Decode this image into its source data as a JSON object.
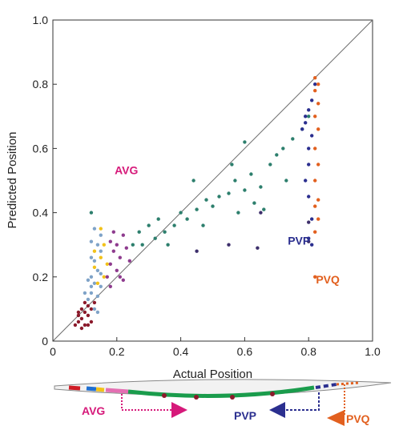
{
  "chart_data": {
    "type": "scatter",
    "xlabel": "Actual Position",
    "ylabel": "Predicted Position",
    "xlim": [
      0,
      1
    ],
    "ylim": [
      0,
      1
    ],
    "x_ticks": [
      "0",
      "0.2",
      "0.4",
      "0.6",
      "0.8",
      "1.0"
    ],
    "y_ticks": [
      "0",
      "0.2",
      "0.4",
      "0.6",
      "0.8",
      "1.0"
    ],
    "grid": false,
    "reference_line": "y = x",
    "annotations": [
      {
        "text": "AVG",
        "x": 0.23,
        "y": 0.52,
        "color": "#d6197a"
      },
      {
        "text": "PVP",
        "x": 0.77,
        "y": 0.3,
        "color": "#2b2f8f"
      },
      {
        "text": "PVQ",
        "x": 0.86,
        "y": 0.18,
        "color": "#e2601f"
      }
    ],
    "series": [
      {
        "color": "#8b1a2b",
        "points": [
          [
            0.07,
            0.05
          ],
          [
            0.08,
            0.06
          ],
          [
            0.08,
            0.08
          ],
          [
            0.09,
            0.04
          ],
          [
            0.09,
            0.07
          ],
          [
            0.1,
            0.09
          ],
          [
            0.1,
            0.05
          ],
          [
            0.11,
            0.08
          ],
          [
            0.11,
            0.11
          ],
          [
            0.12,
            0.06
          ],
          [
            0.12,
            0.1
          ],
          [
            0.13,
            0.12
          ],
          [
            0.09,
            0.1
          ],
          [
            0.1,
            0.12
          ],
          [
            0.08,
            0.09
          ],
          [
            0.11,
            0.05
          ]
        ]
      },
      {
        "color": "#7fa3c8",
        "points": [
          [
            0.11,
            0.13
          ],
          [
            0.12,
            0.15
          ],
          [
            0.13,
            0.18
          ],
          [
            0.12,
            0.2
          ],
          [
            0.14,
            0.22
          ],
          [
            0.13,
            0.25
          ],
          [
            0.15,
            0.28
          ],
          [
            0.14,
            0.3
          ],
          [
            0.12,
            0.17
          ],
          [
            0.13,
            0.1
          ],
          [
            0.14,
            0.14
          ],
          [
            0.15,
            0.21
          ],
          [
            0.11,
            0.19
          ],
          [
            0.12,
            0.26
          ],
          [
            0.15,
            0.33
          ],
          [
            0.13,
            0.35
          ],
          [
            0.14,
            0.09
          ],
          [
            0.1,
            0.15
          ],
          [
            0.15,
            0.17
          ],
          [
            0.12,
            0.31
          ]
        ]
      },
      {
        "color": "#f2c21a",
        "points": [
          [
            0.13,
            0.23
          ],
          [
            0.15,
            0.26
          ],
          [
            0.16,
            0.2
          ],
          [
            0.14,
            0.18
          ],
          [
            0.16,
            0.3
          ],
          [
            0.15,
            0.35
          ],
          [
            0.17,
            0.24
          ],
          [
            0.13,
            0.28
          ]
        ]
      },
      {
        "color": "#8e3b8e",
        "points": [
          [
            0.17,
            0.2
          ],
          [
            0.18,
            0.24
          ],
          [
            0.19,
            0.28
          ],
          [
            0.2,
            0.22
          ],
          [
            0.21,
            0.26
          ],
          [
            0.2,
            0.3
          ],
          [
            0.22,
            0.33
          ],
          [
            0.19,
            0.34
          ],
          [
            0.18,
            0.31
          ],
          [
            0.21,
            0.2
          ],
          [
            0.23,
            0.29
          ],
          [
            0.22,
            0.19
          ],
          [
            0.18,
            0.17
          ],
          [
            0.24,
            0.25
          ]
        ]
      },
      {
        "color": "#2d7f6d",
        "points": [
          [
            0.12,
            0.4
          ],
          [
            0.28,
            0.3
          ],
          [
            0.32,
            0.32
          ],
          [
            0.35,
            0.34
          ],
          [
            0.38,
            0.36
          ],
          [
            0.4,
            0.4
          ],
          [
            0.42,
            0.38
          ],
          [
            0.45,
            0.41
          ],
          [
            0.48,
            0.44
          ],
          [
            0.5,
            0.42
          ],
          [
            0.52,
            0.45
          ],
          [
            0.55,
            0.46
          ],
          [
            0.57,
            0.5
          ],
          [
            0.6,
            0.47
          ],
          [
            0.62,
            0.52
          ],
          [
            0.65,
            0.48
          ],
          [
            0.68,
            0.55
          ],
          [
            0.7,
            0.58
          ],
          [
            0.72,
            0.6
          ],
          [
            0.75,
            0.63
          ],
          [
            0.78,
            0.66
          ],
          [
            0.8,
            0.7
          ],
          [
            0.56,
            0.55
          ],
          [
            0.44,
            0.5
          ],
          [
            0.3,
            0.36
          ],
          [
            0.33,
            0.38
          ],
          [
            0.25,
            0.3
          ],
          [
            0.36,
            0.3
          ],
          [
            0.6,
            0.62
          ],
          [
            0.66,
            0.41
          ],
          [
            0.73,
            0.5
          ],
          [
            0.58,
            0.4
          ],
          [
            0.63,
            0.43
          ],
          [
            0.27,
            0.34
          ],
          [
            0.47,
            0.36
          ]
        ]
      },
      {
        "color": "#3d2f6b",
        "points": [
          [
            0.45,
            0.28
          ],
          [
            0.55,
            0.3
          ],
          [
            0.64,
            0.29
          ],
          [
            0.8,
            0.31
          ],
          [
            0.65,
            0.4
          ],
          [
            0.8,
            0.37
          ]
        ]
      },
      {
        "color": "#2b2f8f",
        "points": [
          [
            0.78,
            0.66
          ],
          [
            0.79,
            0.7
          ],
          [
            0.8,
            0.72
          ],
          [
            0.81,
            0.64
          ],
          [
            0.8,
            0.6
          ],
          [
            0.81,
            0.75
          ],
          [
            0.79,
            0.68
          ],
          [
            0.8,
            0.55
          ],
          [
            0.82,
            0.8
          ],
          [
            0.8,
            0.45
          ],
          [
            0.81,
            0.38
          ],
          [
            0.8,
            0.32
          ],
          [
            0.81,
            0.3
          ],
          [
            0.79,
            0.5
          ]
        ]
      },
      {
        "color": "#e2601f",
        "points": [
          [
            0.82,
            0.82
          ],
          [
            0.82,
            0.78
          ],
          [
            0.83,
            0.74
          ],
          [
            0.82,
            0.7
          ],
          [
            0.83,
            0.66
          ],
          [
            0.82,
            0.6
          ],
          [
            0.83,
            0.55
          ],
          [
            0.82,
            0.5
          ],
          [
            0.83,
            0.44
          ],
          [
            0.82,
            0.42
          ],
          [
            0.83,
            0.38
          ],
          [
            0.82,
            0.34
          ],
          [
            0.82,
            0.2
          ],
          [
            0.83,
            0.8
          ]
        ]
      }
    ],
    "diagram": {
      "labels": [
        {
          "text": "AVG",
          "color": "#d6197a"
        },
        {
          "text": "PVP",
          "color": "#2b2f8f"
        },
        {
          "text": "PVQ",
          "color": "#e2601f"
        }
      ]
    }
  }
}
